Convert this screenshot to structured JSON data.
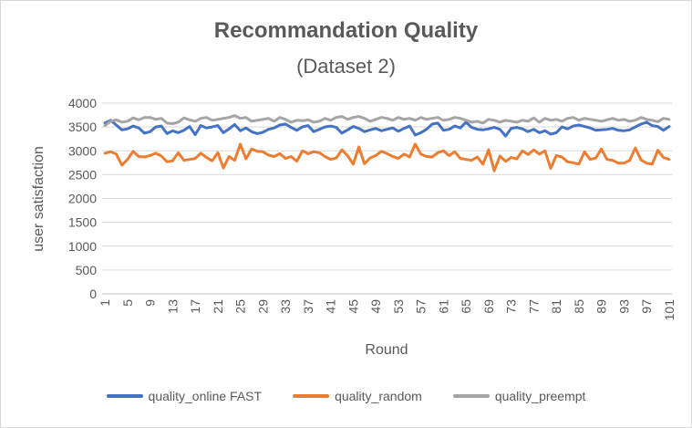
{
  "chart_data": {
    "type": "line",
    "title": "Recommandation Quality",
    "subtitle": "(Dataset 2)",
    "xlabel": "Round",
    "ylabel": "user satisfaction",
    "ylim": [
      0,
      4000
    ],
    "yticks": [
      0,
      500,
      1000,
      1500,
      2000,
      2500,
      3000,
      3500,
      4000
    ],
    "xticks": [
      1,
      5,
      9,
      13,
      17,
      21,
      25,
      29,
      33,
      37,
      41,
      45,
      49,
      53,
      57,
      61,
      65,
      69,
      73,
      77,
      81,
      85,
      89,
      93,
      97,
      101
    ],
    "grid": "horizontal",
    "legend_position": "bottom",
    "series": [
      {
        "name": "quality_online FAST",
        "color": "#4472C4",
        "values": [
          3580,
          3640,
          3540,
          3440,
          3460,
          3520,
          3480,
          3370,
          3400,
          3500,
          3520,
          3360,
          3420,
          3380,
          3430,
          3510,
          3340,
          3530,
          3480,
          3500,
          3530,
          3380,
          3460,
          3550,
          3420,
          3480,
          3400,
          3360,
          3390,
          3450,
          3480,
          3540,
          3560,
          3490,
          3430,
          3500,
          3530,
          3400,
          3450,
          3500,
          3520,
          3490,
          3370,
          3440,
          3510,
          3470,
          3400,
          3440,
          3470,
          3420,
          3450,
          3480,
          3410,
          3470,
          3520,
          3330,
          3380,
          3450,
          3560,
          3580,
          3430,
          3450,
          3520,
          3480,
          3600,
          3490,
          3450,
          3440,
          3460,
          3490,
          3450,
          3310,
          3470,
          3490,
          3460,
          3400,
          3450,
          3380,
          3420,
          3350,
          3380,
          3500,
          3460,
          3520,
          3540,
          3510,
          3480,
          3430,
          3440,
          3450,
          3470,
          3430,
          3420,
          3440,
          3500,
          3560,
          3600,
          3530,
          3510,
          3430,
          3510
        ]
      },
      {
        "name": "quality_random",
        "color": "#ED7D31",
        "values": [
          2950,
          2980,
          2930,
          2700,
          2820,
          2990,
          2880,
          2870,
          2900,
          2950,
          2890,
          2770,
          2790,
          2960,
          2800,
          2820,
          2840,
          2950,
          2860,
          2790,
          2960,
          2640,
          2880,
          2800,
          3140,
          2830,
          3040,
          2990,
          2980,
          2910,
          2880,
          2940,
          2840,
          2880,
          2780,
          3000,
          2940,
          2980,
          2960,
          2880,
          2820,
          2850,
          3020,
          2900,
          2720,
          3080,
          2730,
          2850,
          2900,
          2990,
          2940,
          2880,
          2840,
          2930,
          2870,
          3140,
          2930,
          2880,
          2870,
          2960,
          3000,
          2900,
          2980,
          2840,
          2820,
          2800,
          2870,
          2720,
          3020,
          2580,
          2890,
          2780,
          2860,
          2830,
          3000,
          2920,
          3020,
          2930,
          3000,
          2630,
          2900,
          2870,
          2770,
          2750,
          2720,
          2980,
          2820,
          2850,
          3040,
          2820,
          2800,
          2740,
          2740,
          2800,
          3060,
          2810,
          2740,
          2720,
          3010,
          2860,
          2820
        ]
      },
      {
        "name": "quality_preempt",
        "color": "#A5A5A5",
        "values": [
          3530,
          3620,
          3650,
          3600,
          3620,
          3690,
          3650,
          3700,
          3700,
          3660,
          3680,
          3580,
          3570,
          3600,
          3690,
          3650,
          3620,
          3680,
          3700,
          3640,
          3660,
          3680,
          3700,
          3740,
          3680,
          3700,
          3620,
          3640,
          3660,
          3680,
          3620,
          3700,
          3660,
          3600,
          3640,
          3630,
          3650,
          3600,
          3620,
          3680,
          3640,
          3700,
          3720,
          3660,
          3700,
          3720,
          3680,
          3620,
          3660,
          3700,
          3680,
          3640,
          3700,
          3660,
          3680,
          3640,
          3700,
          3660,
          3680,
          3700,
          3640,
          3660,
          3700,
          3680,
          3640,
          3600,
          3620,
          3580,
          3660,
          3640,
          3600,
          3640,
          3620,
          3600,
          3640,
          3620,
          3690,
          3600,
          3680,
          3640,
          3660,
          3620,
          3680,
          3700,
          3640,
          3680,
          3660,
          3640,
          3620,
          3650,
          3680,
          3640,
          3660,
          3620,
          3640,
          3700,
          3660,
          3640,
          3610,
          3680,
          3660
        ]
      }
    ]
  }
}
